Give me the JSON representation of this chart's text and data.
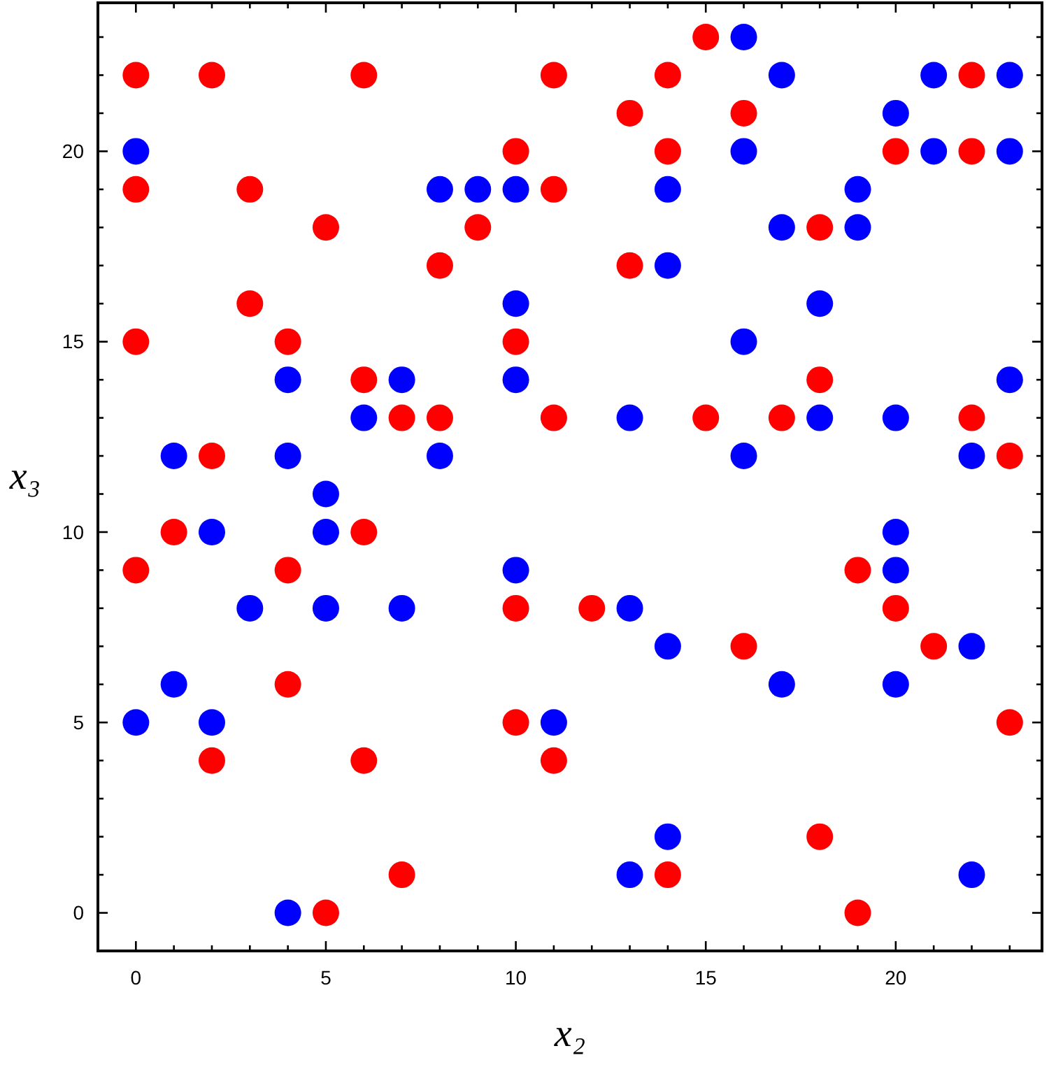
{
  "chart_data": {
    "type": "scatter",
    "xlabel": "x₂",
    "ylabel": "x₃",
    "marker": "circle",
    "grid": false,
    "xlim": [
      -1,
      23.85
    ],
    "ylim": [
      -1,
      23.9
    ],
    "xticks": [
      0,
      {
        "value": 1,
        "label": null
      },
      {
        "value": 2,
        "label": null
      },
      {
        "value": 3,
        "label": null
      },
      {
        "value": 4,
        "label": null
      },
      5,
      {
        "value": 6,
        "label": null
      },
      {
        "value": 7,
        "label": null
      },
      {
        "value": 8,
        "label": null
      },
      {
        "value": 9,
        "label": null
      },
      10,
      {
        "value": 11,
        "label": null
      },
      {
        "value": 12,
        "label": null
      },
      {
        "value": 13,
        "label": null
      },
      {
        "value": 14,
        "label": null
      },
      15,
      {
        "value": 16,
        "label": null
      },
      {
        "value": 17,
        "label": null
      },
      {
        "value": 18,
        "label": null
      },
      {
        "value": 19,
        "label": null
      },
      20,
      {
        "value": 21,
        "label": null
      },
      {
        "value": 22,
        "label": null
      },
      {
        "value": 23,
        "label": null
      }
    ],
    "yticks": [
      0,
      {
        "value": 1,
        "label": null
      },
      {
        "value": 2,
        "label": null
      },
      {
        "value": 3,
        "label": null
      },
      {
        "value": 4,
        "label": null
      },
      5,
      {
        "value": 6,
        "label": null
      },
      {
        "value": 7,
        "label": null
      },
      {
        "value": 8,
        "label": null
      },
      {
        "value": 9,
        "label": null
      },
      10,
      {
        "value": 11,
        "label": null
      },
      {
        "value": 12,
        "label": null
      },
      {
        "value": 13,
        "label": null
      },
      {
        "value": 14,
        "label": null
      },
      15,
      {
        "value": 16,
        "label": null
      },
      {
        "value": 17,
        "label": null
      },
      {
        "value": 18,
        "label": null
      },
      {
        "value": 19,
        "label": null
      },
      20,
      {
        "value": 21,
        "label": null
      },
      {
        "value": 22,
        "label": null
      },
      {
        "value": 23,
        "label": null
      }
    ],
    "series": [
      {
        "color": "#ff0000",
        "x": [
          0,
          2,
          6,
          10,
          0,
          3,
          5,
          9,
          8,
          3,
          0,
          4,
          10,
          6,
          7,
          8,
          2,
          15,
          11,
          14,
          22,
          13,
          16,
          14,
          20,
          22,
          11,
          18,
          13,
          18,
          11,
          15,
          17,
          22,
          23,
          1,
          6,
          0,
          4,
          10,
          4,
          10,
          2,
          6,
          7,
          5,
          19,
          12,
          20,
          16,
          21,
          23,
          11,
          18,
          14,
          19
        ],
        "values": [
          22,
          22,
          22,
          20,
          19,
          19,
          18,
          18,
          17,
          16,
          15,
          15,
          15,
          14,
          13,
          13,
          12,
          23,
          22,
          22,
          22,
          21,
          21,
          20,
          20,
          20,
          19,
          18,
          17,
          14,
          13,
          13,
          13,
          13,
          12,
          10,
          10,
          9,
          9,
          8,
          6,
          5,
          4,
          4,
          1,
          0,
          9,
          8,
          8,
          7,
          7,
          5,
          4,
          2,
          1,
          0
        ]
      },
      {
        "color": "#0000ff",
        "x": [
          0,
          8,
          9,
          10,
          10,
          4,
          7,
          10,
          6,
          1,
          4,
          8,
          5,
          16,
          17,
          21,
          23,
          20,
          16,
          21,
          23,
          14,
          19,
          17,
          19,
          14,
          18,
          16,
          23,
          13,
          18,
          20,
          16,
          22,
          2,
          5,
          10,
          3,
          5,
          7,
          1,
          0,
          2,
          4,
          20,
          20,
          13,
          14,
          22,
          17,
          20,
          11,
          14,
          13,
          22
        ],
        "values": [
          20,
          19,
          19,
          19,
          16,
          14,
          14,
          14,
          13,
          12,
          12,
          12,
          11,
          23,
          22,
          22,
          22,
          21,
          20,
          20,
          20,
          19,
          19,
          18,
          18,
          17,
          16,
          15,
          14,
          13,
          13,
          13,
          12,
          12,
          10,
          10,
          9,
          8,
          8,
          8,
          6,
          5,
          5,
          0,
          10,
          9,
          8,
          7,
          7,
          6,
          6,
          5,
          2,
          1,
          1
        ]
      }
    ]
  }
}
